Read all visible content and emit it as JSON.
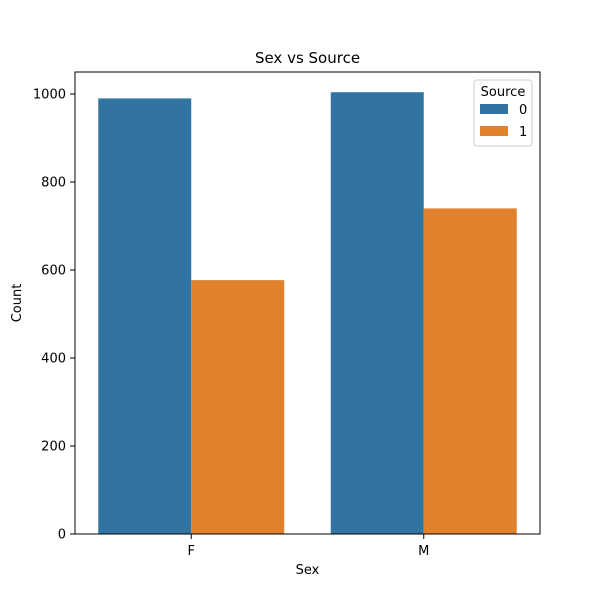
{
  "chart_data": {
    "type": "bar",
    "title": "Sex vs Source",
    "xlabel": "Sex",
    "ylabel": "Count",
    "categories": [
      "F",
      "M"
    ],
    "ylim": [
      0,
      1050
    ],
    "yticks": [
      0,
      200,
      400,
      600,
      800,
      1000
    ],
    "grid": false,
    "legend": {
      "title": "Source",
      "placement": "top-right"
    },
    "series": [
      {
        "name": "0",
        "values": [
          990,
          1004
        ],
        "color": "#3274a1"
      },
      {
        "name": "1",
        "values": [
          577,
          740
        ],
        "color": "#e1812c"
      }
    ]
  }
}
